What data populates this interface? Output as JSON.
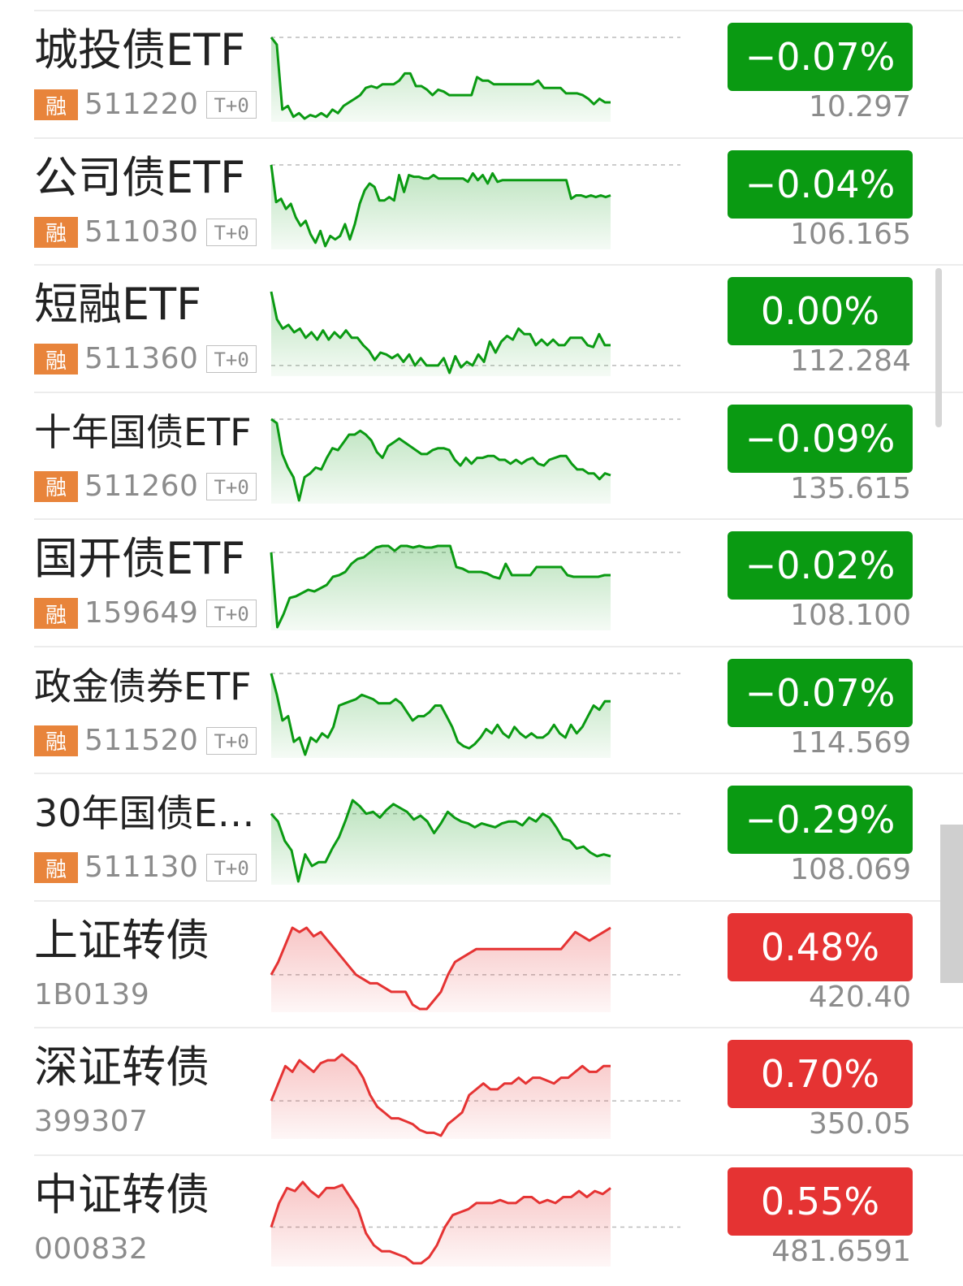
{
  "colors": {
    "down": "#0a9a12",
    "up": "#e53333",
    "neutral": "#0a9a12",
    "tag_rong": "#e8843b"
  },
  "items": [
    {
      "name": "城投债ETF",
      "badge": "融",
      "code": "511220",
      "tag": "T+0",
      "change": "-0.07%",
      "price": "10.297",
      "direction": "down",
      "series": [
        100,
        96,
        60,
        62,
        56,
        58,
        55,
        57,
        56,
        58,
        56,
        60,
        58,
        62,
        64,
        66,
        68,
        72,
        73,
        72,
        74,
        74,
        74,
        76,
        80,
        80,
        73,
        73,
        71,
        68,
        71,
        70,
        68,
        68,
        68,
        68,
        68,
        78,
        76,
        76,
        74,
        74,
        74,
        74,
        74,
        74,
        74,
        74,
        76,
        72,
        72,
        72,
        72,
        69,
        69,
        69,
        68,
        66,
        63,
        66,
        64,
        64
      ],
      "ref": 100
    },
    {
      "name": "公司债ETF",
      "badge": "融",
      "code": "511030",
      "tag": "T+0",
      "change": "-0.04%",
      "price": "106.165",
      "direction": "down",
      "series": [
        100,
        78,
        80,
        74,
        77,
        69,
        64,
        67,
        59,
        54,
        61,
        52,
        58,
        56,
        58,
        65,
        56,
        65,
        77,
        85,
        89,
        87,
        79,
        79,
        81,
        79,
        94,
        84,
        94,
        93,
        93,
        92,
        92,
        94,
        92,
        92,
        92,
        92,
        92,
        92,
        90,
        95,
        91,
        94,
        89,
        95,
        90,
        91,
        91,
        91,
        91,
        91,
        91,
        91,
        91,
        91,
        91,
        91,
        91,
        91,
        91,
        80,
        82,
        82,
        81,
        82,
        81,
        82,
        81,
        82
      ],
      "ref": 100
    },
    {
      "name": "短融ETF",
      "badge": "融",
      "code": "511360",
      "tag": "T+0",
      "change": "0.00%",
      "price": "112.284",
      "direction": "neutral",
      "series": [
        100,
        85,
        80,
        82,
        78,
        80,
        75,
        78,
        74,
        79,
        74,
        78,
        75,
        79,
        75,
        75,
        71,
        68,
        63,
        67,
        66,
        64,
        66,
        62,
        66,
        60,
        64,
        60,
        60,
        60,
        64,
        56,
        65,
        59,
        62,
        60,
        66,
        62,
        73,
        67,
        73,
        76,
        74,
        80,
        77,
        77,
        71,
        74,
        71,
        74,
        71,
        71,
        75,
        75,
        75,
        71,
        70,
        77,
        71,
        71
      ],
      "ref": 60
    },
    {
      "name": "十年国债ETF",
      "badge": "融",
      "code": "511260",
      "tag": "T+0",
      "change": "-0.09%",
      "price": "135.615",
      "direction": "down",
      "series": [
        100,
        98,
        82,
        75,
        70,
        58,
        70,
        72,
        75,
        74,
        80,
        85,
        84,
        88,
        92,
        92,
        94,
        92,
        89,
        83,
        80,
        86,
        88,
        90,
        88,
        86,
        84,
        82,
        82,
        84,
        85,
        85,
        84,
        79,
        76,
        80,
        77,
        80,
        80,
        81,
        81,
        79,
        79,
        77,
        79,
        77,
        79,
        80,
        77,
        76,
        79,
        80,
        81,
        81,
        77,
        74,
        74,
        72,
        72,
        69,
        72,
        71
      ],
      "ref": 100
    },
    {
      "name": "国开债ETF",
      "badge": "融",
      "code": "159649",
      "tag": "T+0",
      "change": "-0.02%",
      "price": "108.100",
      "direction": "down",
      "series": [
        100,
        54,
        62,
        72,
        73,
        75,
        77,
        76,
        78,
        80,
        85,
        86,
        88,
        93,
        96,
        97,
        100,
        103,
        104,
        104,
        101,
        104,
        104,
        103,
        104,
        103,
        103,
        104,
        104,
        104,
        91,
        90,
        88,
        88,
        88,
        87,
        85,
        84,
        93,
        86,
        86,
        86,
        86,
        91,
        91,
        91,
        91,
        91,
        86,
        85,
        85,
        85,
        85,
        85,
        86,
        86
      ],
      "ref": 100
    },
    {
      "name": "政金债券ETF",
      "badge": "融",
      "code": "511520",
      "tag": "T+0",
      "change": "-0.07%",
      "price": "114.569",
      "direction": "down",
      "series": [
        100,
        90,
        78,
        80,
        68,
        70,
        62,
        70,
        68,
        72,
        70,
        75,
        85,
        86,
        87,
        88,
        90,
        89,
        88,
        86,
        86,
        86,
        88,
        86,
        82,
        78,
        80,
        80,
        82,
        85,
        85,
        80,
        75,
        68,
        66,
        65,
        67,
        70,
        74,
        72,
        76,
        72,
        70,
        75,
        72,
        70,
        72,
        70,
        70,
        72,
        76,
        72,
        70,
        76,
        72,
        75,
        80,
        85,
        83,
        87,
        87
      ],
      "ref": 100
    },
    {
      "name": "30年国债ET…",
      "badge": "融",
      "code": "511130",
      "tag": "T+0",
      "change": "-0.29%",
      "price": "108.069",
      "direction": "down",
      "series": [
        100,
        96,
        86,
        81,
        65,
        79,
        73,
        75,
        75,
        82,
        88,
        97,
        107,
        104,
        100,
        101,
        98,
        102,
        105,
        103,
        101,
        97,
        99,
        96,
        90,
        95,
        101,
        98,
        96,
        95,
        93,
        95,
        94,
        93,
        95,
        96,
        96,
        94,
        98,
        96,
        100,
        98,
        93,
        87,
        86,
        82,
        83,
        80,
        78,
        79,
        78
      ],
      "ref": 100
    },
    {
      "name": "上证转债",
      "badge": "",
      "code": "1B0139",
      "tag": "",
      "change": "0.48%",
      "price": "420.40",
      "direction": "up",
      "series": [
        100,
        103,
        107,
        111,
        110,
        111,
        109,
        110,
        108,
        106,
        104,
        102,
        100,
        99,
        98,
        98,
        97,
        96,
        96,
        96,
        93,
        92,
        92,
        94,
        96,
        100,
        103,
        104,
        105,
        106,
        106,
        106,
        106,
        106,
        106,
        106,
        106,
        106,
        106,
        106,
        106,
        106,
        108,
        110,
        109,
        108,
        109,
        110,
        111
      ],
      "ref": 100
    },
    {
      "name": "深证转债",
      "badge": "",
      "code": "399307",
      "tag": "",
      "change": "0.70%",
      "price": "350.05",
      "direction": "up",
      "series": [
        100,
        106,
        112,
        110,
        114,
        112,
        110,
        113,
        114,
        114,
        116,
        114,
        112,
        108,
        102,
        98,
        96,
        94,
        94,
        93,
        92,
        90,
        89,
        89,
        88,
        92,
        94,
        96,
        102,
        104,
        106,
        104,
        104,
        106,
        106,
        108,
        106,
        108,
        108,
        107,
        106,
        108,
        108,
        110,
        112,
        110,
        110,
        112,
        112
      ],
      "ref": 100
    },
    {
      "name": "中证转债",
      "badge": "",
      "code": "000832",
      "tag": "",
      "change": "0.55%",
      "price": "481.6591",
      "direction": "up",
      "series": [
        100,
        108,
        113,
        112,
        115,
        112,
        110,
        113,
        113,
        114,
        110,
        106,
        98,
        94,
        92,
        92,
        91,
        90,
        88,
        88,
        90,
        94,
        100,
        104,
        105,
        106,
        108,
        108,
        108,
        109,
        108,
        108,
        110,
        110,
        108,
        109,
        108,
        110,
        110,
        112,
        110,
        112,
        111,
        113
      ],
      "ref": 100
    }
  ]
}
